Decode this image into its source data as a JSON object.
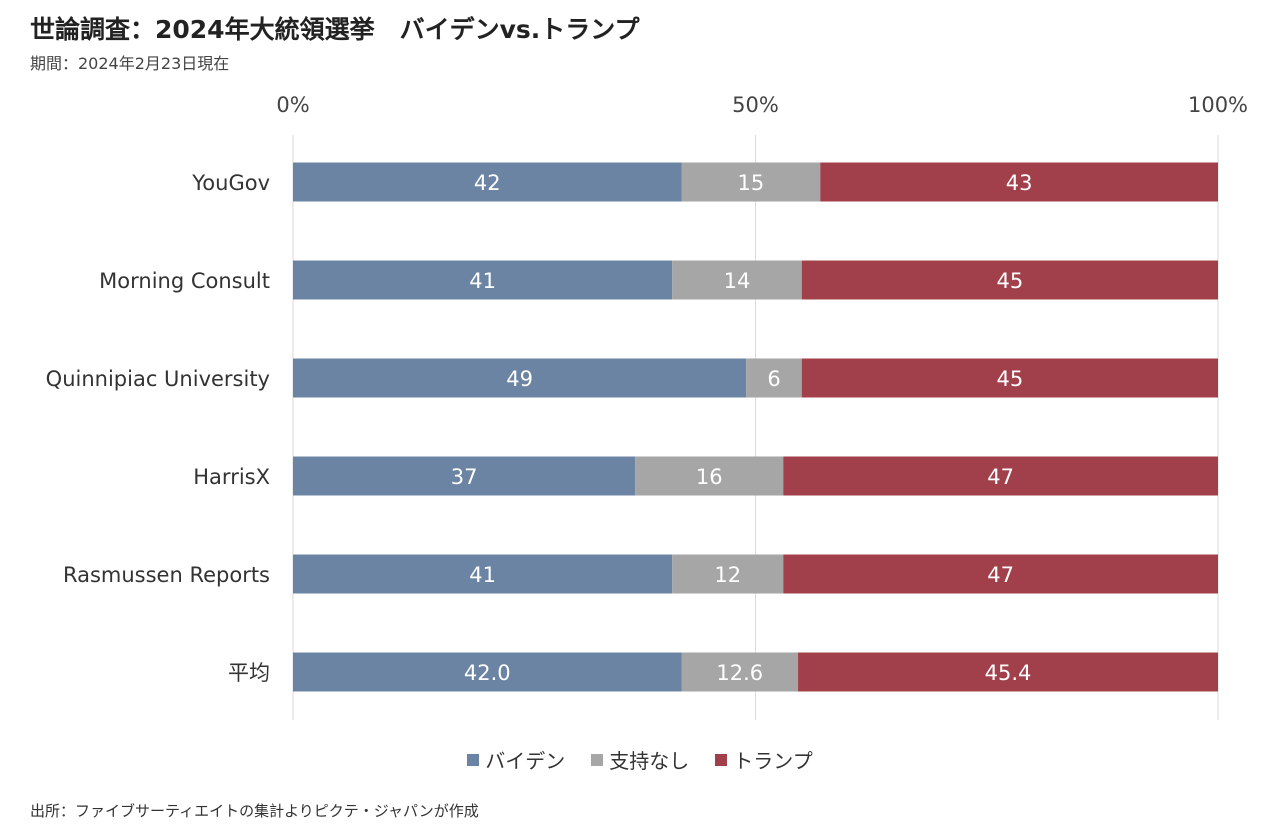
{
  "title": "世論調査：2024年大統領選挙　バイデンvs.トランプ",
  "subtitle": "期間：2024年2月23日現在",
  "source": "出所：ファイブサーティエイトの集計よりピクテ・ジャパンが作成",
  "chart_data": {
    "type": "bar",
    "orientation": "horizontal",
    "stacked": true,
    "percent_scale": true,
    "categories": [
      "YouGov",
      "Morning Consult",
      "Quinnipiac University",
      "HarrisX",
      "Rasmussen Reports",
      "平均"
    ],
    "series": [
      {
        "name": "バイデン",
        "color": "#6B84A3",
        "values": [
          42,
          41,
          49,
          37,
          41,
          42.0
        ],
        "labels": [
          "42",
          "41",
          "49",
          "37",
          "41",
          "42.0"
        ]
      },
      {
        "name": "支持なし",
        "color": "#A6A6A6",
        "values": [
          15,
          14,
          6,
          16,
          12,
          12.6
        ],
        "labels": [
          "15",
          "14",
          "6",
          "16",
          "12",
          "12.6"
        ]
      },
      {
        "name": "トランプ",
        "color": "#A1404A",
        "values": [
          43,
          45,
          45,
          47,
          47,
          45.4
        ],
        "labels": [
          "43",
          "45",
          "45",
          "47",
          "47",
          "45.4"
        ]
      }
    ],
    "xlim": [
      0,
      100
    ],
    "x_ticks": [
      0,
      50,
      100
    ],
    "x_tick_labels": [
      "0%",
      "50%",
      "100%"
    ],
    "x_axis_position": "top",
    "grid": true,
    "legend_position": "bottom"
  }
}
